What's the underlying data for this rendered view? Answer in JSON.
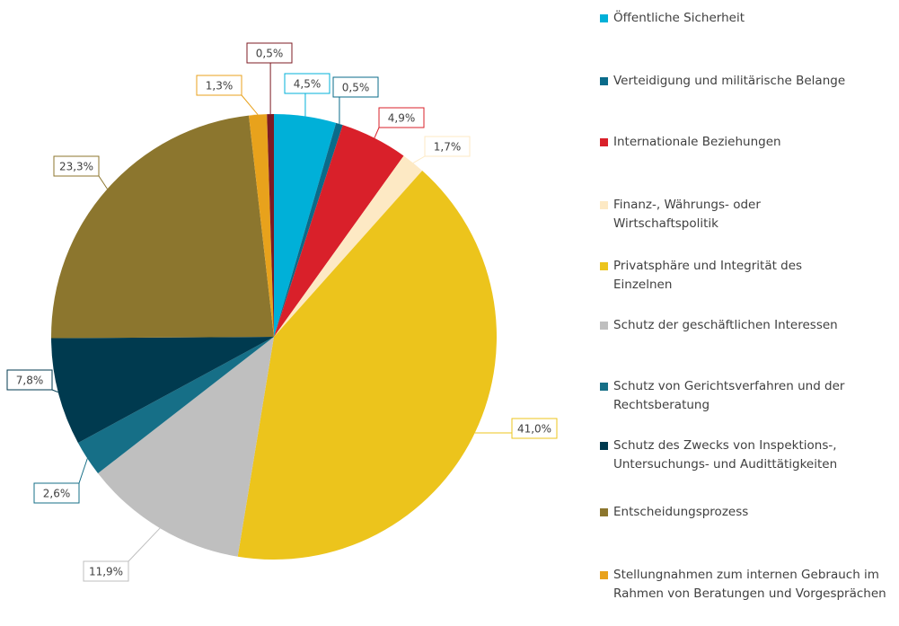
{
  "chart_data": {
    "type": "pie",
    "categories": [
      "Öffentliche Sicherheit",
      "Verteidigung und militärische Belange",
      "Internationale Beziehungen",
      "Finanz-, Währungs- oder Wirtschaftspolitik",
      "Privatsphäre und Integrität des Einzelnen",
      "Schutz der geschäftlichen Interessen",
      "Schutz von Gerichtsverfahren und der Rechtsberatung",
      "Schutz des Zwecks von Inspektions-, Untersuchungs- und Audittätigkeiten",
      "Entscheidungsprozess",
      "Stellungnahmen zum internen Gebrauch im Rahmen von Beratungen und Vorgesprächen",
      null
    ],
    "values": [
      4.5,
      0.5,
      4.9,
      1.7,
      41.0,
      11.9,
      2.6,
      7.8,
      23.3,
      1.3,
      0.5
    ],
    "value_labels": [
      "4,5%",
      "0,5%",
      "4,9%",
      "1,7%",
      "41,0%",
      "11,9%",
      "2,6%",
      "7,8%",
      "23,3%",
      "1,3%",
      "0,5%"
    ],
    "colors": [
      "#00b0d8",
      "#0a6b8a",
      "#d9202a",
      "#fde9c4",
      "#ecc41c",
      "#bfbfbf",
      "#166f87",
      "#003a4f",
      "#8c762e",
      "#e8a21c",
      "#7d1b23"
    ]
  }
}
